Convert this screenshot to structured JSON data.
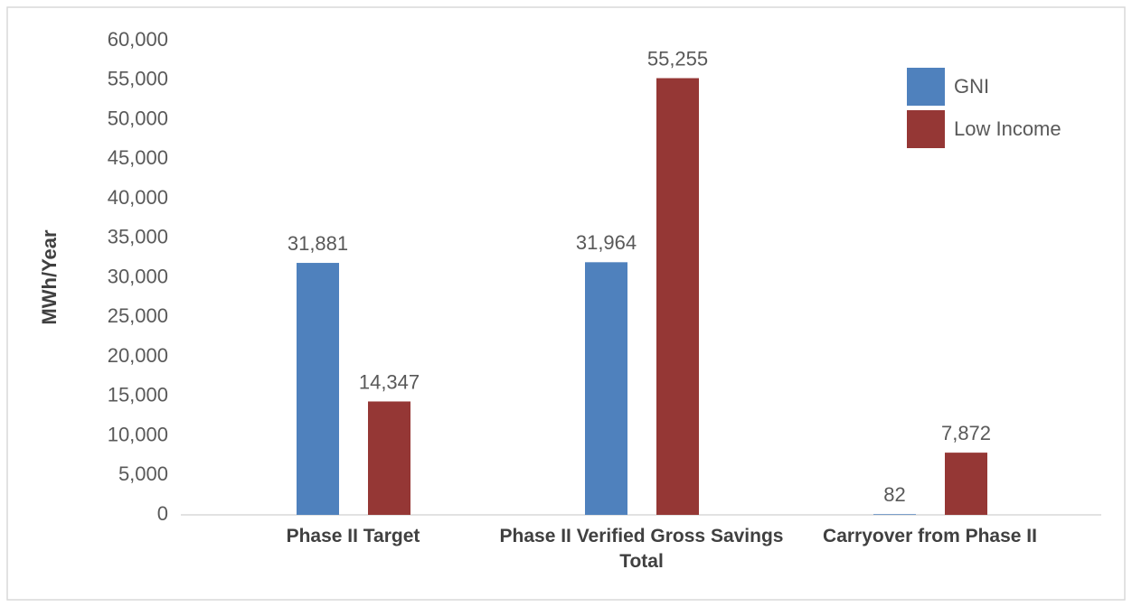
{
  "chart_data": {
    "type": "bar",
    "categories": [
      "Phase II Target",
      "Phase II Verified Gross Savings Total",
      "Carryover from Phase II"
    ],
    "series": [
      {
        "name": "GNI",
        "color": "#4f81bd",
        "values": [
          31881,
          31964,
          82
        ],
        "value_labels": [
          "31,881",
          "31,964",
          "82"
        ]
      },
      {
        "name": "Low Income",
        "color": "#953735",
        "values": [
          14347,
          55255,
          7872
        ],
        "value_labels": [
          "14,347",
          "55,255",
          "7,872"
        ]
      }
    ],
    "y_label": "MWh/Year",
    "ylim": [
      0,
      60000
    ],
    "yticks": [
      0,
      {
        "value": 5000,
        "label": "5,000"
      },
      {
        "value": 10000,
        "label": "10,000"
      },
      {
        "value": 15000,
        "label": "15,000"
      },
      {
        "value": 20000,
        "label": "20,000"
      },
      {
        "value": 25000,
        "label": "25,000"
      },
      {
        "value": 30000,
        "label": "30,000"
      },
      {
        "value": 35000,
        "label": "35,000"
      },
      {
        "value": 40000,
        "label": "40,000"
      },
      {
        "value": 45000,
        "label": "45,000"
      },
      {
        "value": 50000,
        "label": "50,000"
      },
      {
        "value": 55000,
        "label": "55,000"
      },
      {
        "value": 60000,
        "label": "60,000"
      }
    ],
    "grid": false,
    "legend": "top-right"
  }
}
